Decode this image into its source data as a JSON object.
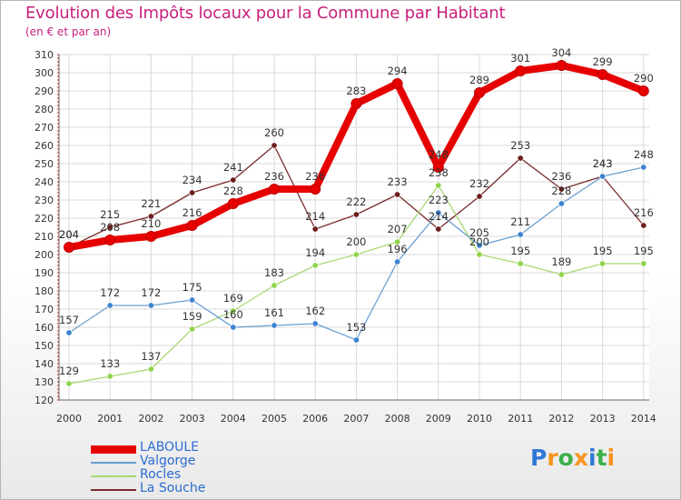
{
  "title": "Evolution des Impôts locaux pour la Commune par Habitant",
  "subtitle": "(en € et par an)",
  "logo": {
    "letters": [
      "P",
      "r",
      "o",
      "x",
      "i",
      "t",
      "i"
    ],
    "colors": [
      "#2f78d6",
      "#f7941d",
      "#3db04a",
      "#f7941d",
      "#2f78d6",
      "#3db04a",
      "#f7941d"
    ]
  },
  "chart_data": {
    "type": "line",
    "x": [
      "2000",
      "2001",
      "2002",
      "2003",
      "2004",
      "2005",
      "2006",
      "2007",
      "2008",
      "2009",
      "2010",
      "2011",
      "2012",
      "2013",
      "2014"
    ],
    "ylim": [
      120,
      310
    ],
    "yticks": [
      120,
      130,
      140,
      150,
      160,
      170,
      180,
      190,
      200,
      210,
      220,
      230,
      240,
      250,
      260,
      270,
      280,
      290,
      300,
      310
    ],
    "grid": true,
    "legend_position": "bottom-left",
    "series": [
      {
        "name": "La Souche",
        "color": "#7a2a2a",
        "line_width": 1.3,
        "dot": "#6e1c1c",
        "values": [
          204,
          215,
          221,
          234,
          241,
          260,
          214,
          222,
          233,
          214,
          232,
          253,
          236,
          243,
          216
        ]
      },
      {
        "name": "Rocles",
        "color": "#a8d873",
        "line_width": 1.3,
        "dot": "#8fd44a",
        "values": [
          129,
          133,
          137,
          159,
          169,
          183,
          194,
          200,
          207,
          238,
          200,
          195,
          189,
          195,
          195
        ]
      },
      {
        "name": "Valgorge",
        "color": "#6a9fd2",
        "line_width": 1.3,
        "dot": "#3d83d0",
        "values": [
          157,
          172,
          172,
          175,
          160,
          161,
          162,
          153,
          196,
          223,
          205,
          211,
          228,
          243,
          248
        ]
      },
      {
        "name": "LABOULE",
        "color": "#e60000",
        "line_width": 8,
        "dot": "#e60000",
        "values": [
          204,
          208,
          210,
          216,
          228,
          236,
          236,
          283,
          294,
          248,
          289,
          301,
          304,
          299,
          290
        ]
      }
    ],
    "legend_order": [
      "LABOULE",
      "Valgorge",
      "Rocles",
      "La Souche"
    ]
  }
}
